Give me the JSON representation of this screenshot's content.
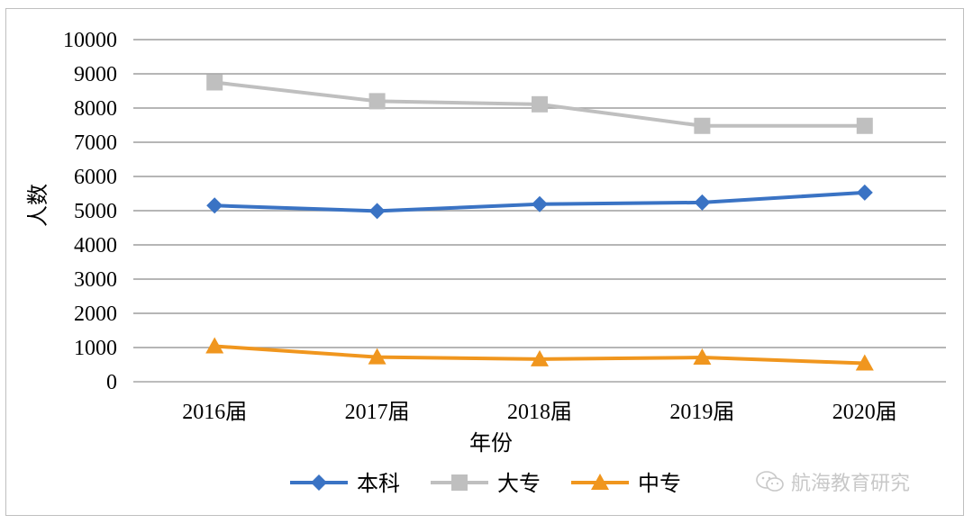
{
  "chart_data": {
    "type": "line",
    "categories": [
      "2016届",
      "2017届",
      "2018届",
      "2019届",
      "2020届"
    ],
    "series": [
      {
        "name": "本科",
        "values": [
          5150,
          4990,
          5190,
          5240,
          5530
        ],
        "color": "#3a73c4",
        "marker": "diamond"
      },
      {
        "name": "大专",
        "values": [
          8750,
          8200,
          8110,
          7480,
          7480
        ],
        "color": "#bfbfbf",
        "marker": "square"
      },
      {
        "name": "中专",
        "values": [
          1040,
          720,
          660,
          710,
          540
        ],
        "color": "#f0961e",
        "marker": "triangle"
      }
    ],
    "xlabel": "年份",
    "ylabel": "人数",
    "ylim": [
      0,
      10000
    ],
    "yticks": [
      "0",
      "1000",
      "2000",
      "3000",
      "4000",
      "5000",
      "6000",
      "7000",
      "8000",
      "9000",
      "10000"
    ],
    "grid": true,
    "legend_position": "bottom"
  },
  "watermark": {
    "text": "航海教育研究",
    "icon": "wechat-icon"
  }
}
